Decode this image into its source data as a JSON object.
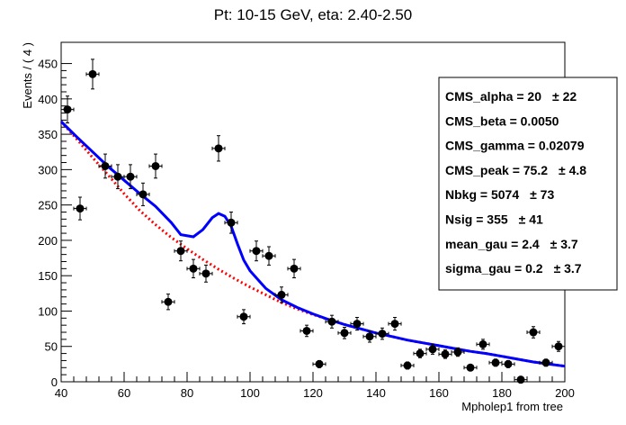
{
  "chart_data": {
    "type": "scatter",
    "title": "Pt: 10-15 GeV, eta: 2.40-2.50",
    "xlabel": "Mpholep1 from tree",
    "ylabel": "Events / ( 4 )",
    "xlim": [
      40,
      200
    ],
    "ylim": [
      0,
      480
    ],
    "x_ticks": [
      40,
      60,
      80,
      100,
      120,
      140,
      160,
      180,
      200
    ],
    "y_ticks": [
      0,
      50,
      100,
      150,
      200,
      250,
      300,
      350,
      400,
      450
    ],
    "x_err": 2,
    "series": [
      {
        "kind": "data-points",
        "color": "#000000",
        "x": [
          42,
          46,
          50,
          54,
          58,
          62,
          66,
          70,
          74,
          78,
          82,
          86,
          90,
          94,
          98,
          102,
          106,
          110,
          114,
          118,
          122,
          126,
          130,
          134,
          138,
          142,
          146,
          150,
          154,
          158,
          162,
          166,
          170,
          174,
          178,
          182,
          186,
          190,
          194,
          198
        ],
        "y": [
          385,
          245,
          435,
          305,
          290,
          290,
          265,
          305,
          113,
          185,
          160,
          153,
          330,
          225,
          92,
          185,
          178,
          123,
          160,
          72,
          25,
          85,
          69,
          82,
          64,
          68,
          82,
          23,
          40,
          46,
          39,
          42,
          20,
          53,
          27,
          25,
          3,
          70,
          27,
          50
        ],
        "y_err": [
          19,
          16,
          21,
          17,
          17,
          17,
          16,
          17,
          11,
          14,
          13,
          12,
          18,
          15,
          10,
          14,
          13,
          11,
          13,
          8,
          5,
          9,
          8,
          9,
          8,
          8,
          9,
          5,
          6,
          7,
          6,
          6,
          4,
          7,
          5,
          5,
          2,
          8,
          5,
          7
        ]
      },
      {
        "kind": "background-fit",
        "style": "dashed",
        "color": "#ff0000",
        "x": [
          40,
          45,
          50,
          55,
          60,
          65,
          70,
          75,
          80,
          85,
          90,
          95,
          100,
          105,
          110,
          115,
          120,
          125,
          130,
          135,
          140,
          145,
          150,
          155,
          160,
          165,
          170,
          175,
          180,
          185,
          190,
          195,
          200
        ],
        "y": [
          368,
          343,
          317,
          292,
          266,
          242,
          222,
          204,
          188,
          173,
          159,
          146,
          134,
          123,
          112,
          103,
          95,
          88,
          81,
          75,
          69,
          64,
          59,
          55,
          51,
          47,
          43,
          40,
          36,
          32,
          28,
          25,
          22
        ]
      },
      {
        "kind": "total-fit",
        "style": "solid",
        "color": "#0000ff",
        "x": [
          40,
          45,
          50,
          55,
          60,
          65,
          70,
          75,
          78,
          82,
          85,
          88,
          90,
          92,
          94,
          96,
          98,
          100,
          103,
          105,
          110,
          115,
          120,
          125,
          130,
          135,
          140,
          145,
          150,
          155,
          160,
          165,
          170,
          175,
          180,
          185,
          190,
          195,
          200
        ],
        "y": [
          368,
          346,
          325,
          304,
          285,
          266,
          248,
          225,
          208,
          205,
          215,
          232,
          238,
          234,
          220,
          195,
          172,
          157,
          142,
          132,
          116,
          105,
          96,
          88,
          81,
          75,
          69,
          64,
          59,
          55,
          51,
          47,
          43,
          40,
          36,
          32,
          28,
          25,
          22
        ]
      }
    ],
    "stats_box": [
      {
        "label": "CMS_alpha =  20",
        "err": "± 22"
      },
      {
        "label": "CMS_beta =  0.0050",
        "err": ""
      },
      {
        "label": "CMS_gamma =  0.02079",
        "err": ""
      },
      {
        "label": "CMS_peak =  75.2",
        "err": "± 4.8"
      },
      {
        "label": "Nbkg =  5074",
        "err": "± 73"
      },
      {
        "label": "Nsig =  355",
        "err": "± 41"
      },
      {
        "label": "mean_gau =  2.4",
        "err": "± 3.7"
      },
      {
        "label": "sigma_gau =  0.2",
        "err": "± 3.7"
      }
    ],
    "stats_box_placement": "right",
    "grid": false
  }
}
